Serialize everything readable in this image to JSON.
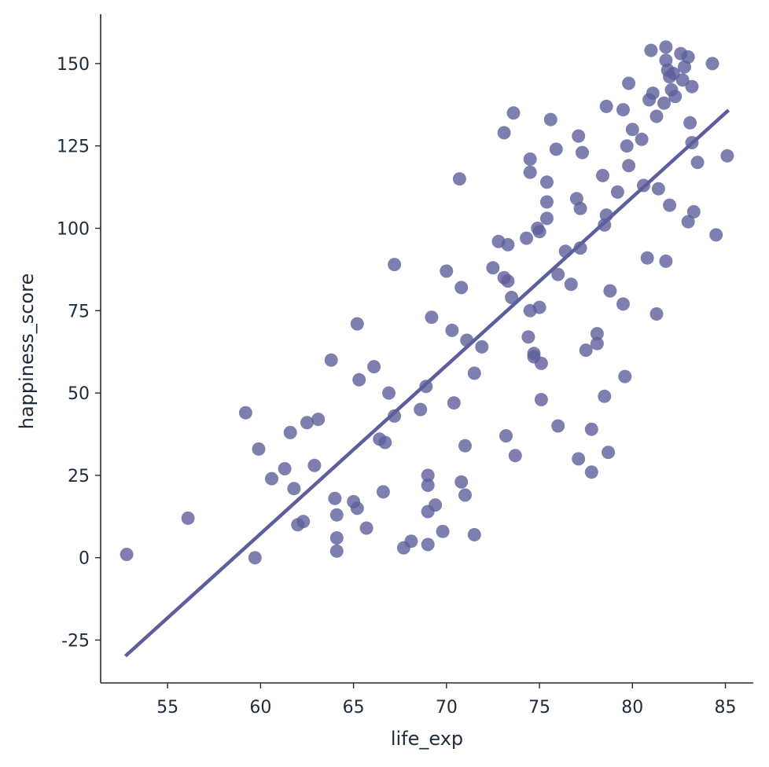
{
  "chart_data": {
    "type": "scatter",
    "title": "",
    "xlabel": "life_exp",
    "ylabel": "happiness_score",
    "xlim": [
      51.4,
      86.5
    ],
    "ylim": [
      -38,
      165
    ],
    "xticks": [
      55,
      60,
      65,
      70,
      75,
      80,
      85
    ],
    "yticks": [
      -25,
      0,
      25,
      50,
      75,
      100,
      125,
      150
    ],
    "grid": false,
    "legend": "none",
    "colors": {
      "points": "#5c5f9b",
      "line": "#5c5f9b",
      "axis": "#1d2b3a"
    },
    "points": [
      [
        52.8,
        1
      ],
      [
        56.1,
        12
      ],
      [
        59.2,
        44
      ],
      [
        59.7,
        0
      ],
      [
        59.9,
        33
      ],
      [
        60.6,
        24
      ],
      [
        61.3,
        27
      ],
      [
        61.6,
        38
      ],
      [
        61.8,
        21
      ],
      [
        62.0,
        10
      ],
      [
        62.3,
        11
      ],
      [
        62.5,
        41
      ],
      [
        62.9,
        28
      ],
      [
        63.1,
        42
      ],
      [
        63.8,
        60
      ],
      [
        64.0,
        18
      ],
      [
        64.1,
        13
      ],
      [
        64.1,
        6
      ],
      [
        64.1,
        2
      ],
      [
        65.0,
        17
      ],
      [
        65.2,
        15
      ],
      [
        65.2,
        71
      ],
      [
        65.3,
        54
      ],
      [
        65.7,
        9
      ],
      [
        66.1,
        58
      ],
      [
        66.4,
        36
      ],
      [
        66.6,
        20
      ],
      [
        66.7,
        35
      ],
      [
        66.9,
        50
      ],
      [
        67.2,
        43
      ],
      [
        67.2,
        89
      ],
      [
        67.7,
        3
      ],
      [
        68.1,
        5
      ],
      [
        68.6,
        45
      ],
      [
        68.9,
        52
      ],
      [
        69.0,
        25
      ],
      [
        69.0,
        22
      ],
      [
        69.0,
        14
      ],
      [
        69.0,
        4
      ],
      [
        69.2,
        73
      ],
      [
        69.4,
        16
      ],
      [
        69.8,
        8
      ],
      [
        70.0,
        87
      ],
      [
        70.3,
        69
      ],
      [
        70.4,
        47
      ],
      [
        70.7,
        115
      ],
      [
        70.8,
        82
      ],
      [
        70.8,
        23
      ],
      [
        71.0,
        34
      ],
      [
        71.0,
        19
      ],
      [
        71.1,
        66
      ],
      [
        71.5,
        56
      ],
      [
        71.5,
        7
      ],
      [
        71.9,
        64
      ],
      [
        72.5,
        88
      ],
      [
        72.8,
        96
      ],
      [
        73.1,
        129
      ],
      [
        73.1,
        85
      ],
      [
        73.2,
        37
      ],
      [
        73.3,
        95
      ],
      [
        73.3,
        84
      ],
      [
        73.5,
        79
      ],
      [
        73.6,
        135
      ],
      [
        73.7,
        31
      ],
      [
        74.3,
        97
      ],
      [
        74.4,
        67
      ],
      [
        74.5,
        121
      ],
      [
        74.5,
        117
      ],
      [
        74.5,
        75
      ],
      [
        74.7,
        62
      ],
      [
        74.7,
        61
      ],
      [
        74.9,
        100
      ],
      [
        75.0,
        99
      ],
      [
        75.0,
        76
      ],
      [
        75.1,
        59
      ],
      [
        75.1,
        48
      ],
      [
        75.4,
        114
      ],
      [
        75.4,
        108
      ],
      [
        75.4,
        103
      ],
      [
        75.6,
        133
      ],
      [
        75.9,
        124
      ],
      [
        76.0,
        86
      ],
      [
        76.0,
        40
      ],
      [
        76.4,
        93
      ],
      [
        76.7,
        83
      ],
      [
        77.0,
        109
      ],
      [
        77.1,
        128
      ],
      [
        77.1,
        30
      ],
      [
        77.2,
        106
      ],
      [
        77.2,
        94
      ],
      [
        77.3,
        123
      ],
      [
        77.5,
        63
      ],
      [
        77.8,
        39
      ],
      [
        77.8,
        26
      ],
      [
        78.1,
        68
      ],
      [
        78.1,
        65
      ],
      [
        78.4,
        116
      ],
      [
        78.5,
        101
      ],
      [
        78.5,
        49
      ],
      [
        78.6,
        137
      ],
      [
        78.6,
        104
      ],
      [
        78.7,
        32
      ],
      [
        78.8,
        81
      ],
      [
        79.2,
        111
      ],
      [
        79.5,
        136
      ],
      [
        79.5,
        77
      ],
      [
        79.6,
        55
      ],
      [
        79.7,
        125
      ],
      [
        79.8,
        144
      ],
      [
        79.8,
        119
      ],
      [
        80.0,
        130
      ],
      [
        80.5,
        127
      ],
      [
        80.6,
        113
      ],
      [
        80.8,
        91
      ],
      [
        80.9,
        139
      ],
      [
        81.0,
        154
      ],
      [
        81.1,
        141
      ],
      [
        81.3,
        134
      ],
      [
        81.3,
        74
      ],
      [
        81.4,
        112
      ],
      [
        81.7,
        138
      ],
      [
        81.8,
        155
      ],
      [
        81.8,
        151
      ],
      [
        81.8,
        90
      ],
      [
        81.9,
        148
      ],
      [
        82.0,
        146
      ],
      [
        82.0,
        107
      ],
      [
        82.1,
        142
      ],
      [
        82.2,
        147
      ],
      [
        82.3,
        140
      ],
      [
        82.6,
        153
      ],
      [
        82.7,
        145
      ],
      [
        82.8,
        149
      ],
      [
        83.0,
        152
      ],
      [
        83.0,
        102
      ],
      [
        83.1,
        132
      ],
      [
        83.2,
        143
      ],
      [
        83.2,
        126
      ],
      [
        83.3,
        105
      ],
      [
        83.5,
        120
      ],
      [
        84.3,
        150
      ],
      [
        84.5,
        98
      ],
      [
        85.1,
        122
      ]
    ],
    "regression_line": {
      "x": [
        52.8,
        85.1
      ],
      "y": [
        -29.5,
        135.5
      ]
    }
  }
}
